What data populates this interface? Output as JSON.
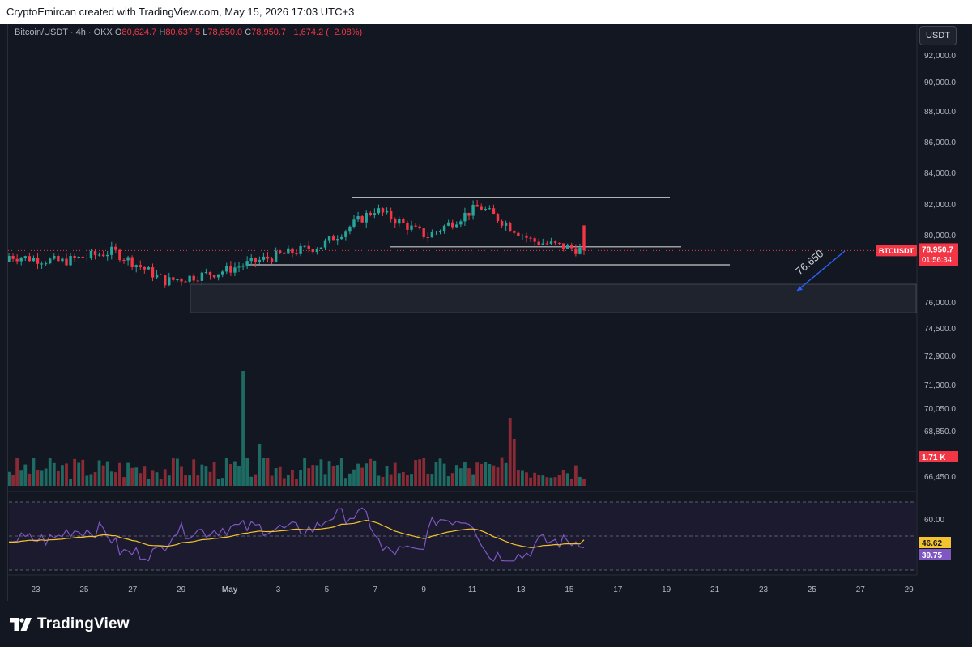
{
  "header": {
    "text": "CryptoEmircan created with TradingView.com, May 15, 2026 17:03 UTC+3"
  },
  "legend": {
    "symbol": "Bitcoin/USDT · 4h · OKX",
    "o_label": "O",
    "o": "80,624.7",
    "h_label": "H",
    "h": "80,637.5",
    "l_label": "L",
    "l": "78,650.0",
    "c_label": "C",
    "c": "78,950.7",
    "change": "−1,674.2 (−2.08%)"
  },
  "currency_button": "USDT",
  "price_axis": {
    "ticks": [
      "92,000.0",
      "90,000.0",
      "88,000.0",
      "86,000.0",
      "84,000.0",
      "82,000.0",
      "80,000.0",
      "76,000.0",
      "74,500.0",
      "72,900.0",
      "71,300.0",
      "70,050.0",
      "68,850.0",
      "66,450.0"
    ]
  },
  "price_label": {
    "symbol": "BTCUSDT",
    "price": "78,950.7",
    "countdown": "01:56:34"
  },
  "volume": {
    "last_label": "1.71 K"
  },
  "rsi": {
    "level_label": "60.00",
    "ma_value_label": "46.62",
    "rsi_value_label": "39.75"
  },
  "annotation": {
    "target_label": "76.650"
  },
  "time_axis": {
    "labels": [
      "23",
      "25",
      "27",
      "29",
      "May",
      "3",
      "5",
      "7",
      "9",
      "11",
      "13",
      "15",
      "17",
      "19",
      "21",
      "23",
      "25",
      "27",
      "29"
    ]
  },
  "footer": {
    "logo_text": "TradingView"
  },
  "colors": {
    "up": "#26a69a",
    "down": "#f23645",
    "up_volume": "#1e6b64",
    "down_volume": "#8a2a35",
    "rsi": "#7e57c2",
    "rsi_ma": "#f4c430",
    "background": "#131722"
  },
  "chart_data": {
    "type": "candlestick",
    "timeframe": "4h",
    "price_ylim": [
      74000,
      93000
    ],
    "rsi_ylim": [
      20,
      80
    ],
    "levels": {
      "range_top": 82500,
      "range_bottom": 79200,
      "support": 78000,
      "demand_zone": [
        74800,
        76700
      ],
      "target": 76650
    },
    "x": [
      "Apr 23",
      "Apr 25",
      "Apr 27",
      "Apr 29",
      "May 1",
      "May 3",
      "May 5",
      "May 7",
      "May 9",
      "May 11",
      "May 13",
      "May 15"
    ],
    "close": [
      78600,
      78200,
      78900,
      76900,
      77500,
      78500,
      79300,
      81700,
      79900,
      81900,
      79600,
      78950.7
    ]
  }
}
